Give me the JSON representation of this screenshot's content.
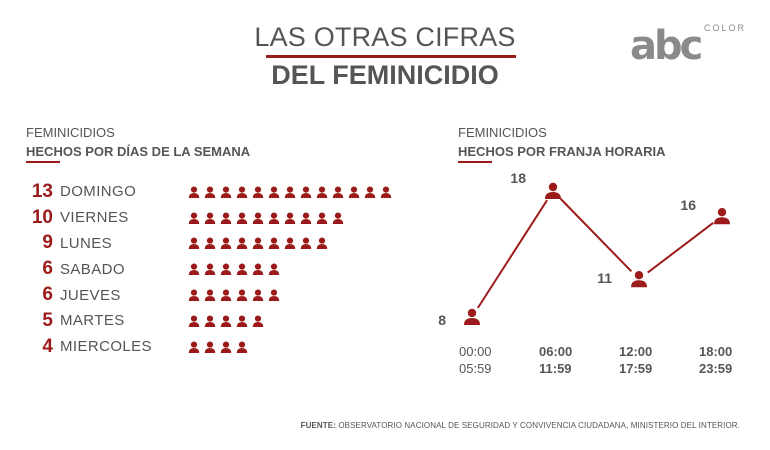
{
  "header": {
    "line1": "LAS OTRAS CIFRAS",
    "line2": "DEL FEMINICIDIO"
  },
  "logo": {
    "main": "abc",
    "sub": "COLOR"
  },
  "accent_color": "#9b1b1b",
  "text_color": "#555555",
  "left_section": {
    "title": "FEMINICIDIOS",
    "subtitle": "HECHOS POR DÍAS DE LA SEMANA"
  },
  "right_section": {
    "title": "FEMINICIDIOS",
    "subtitle": "HECHOS POR FRANJA HORARIA"
  },
  "time_labels": [
    {
      "start": "00:00",
      "end": "05:59"
    },
    {
      "start": "06:00",
      "end": "11:59"
    },
    {
      "start": "12:00",
      "end": "17:59"
    },
    {
      "start": "18:00",
      "end": "23:59"
    }
  ],
  "source": {
    "label": "FUENTE:",
    "text": "OBSERVATORIO NACIONAL DE SEGURIDAD Y CONVIVENCIA CIUDADANA, MINISTERIO DEL INTERIOR."
  },
  "chart_data": [
    {
      "type": "bar",
      "categories": [
        "DOMINGO",
        "VIERNES",
        "LUNES",
        "SABADO",
        "JUEVES",
        "MARTES",
        "MIERCOLES"
      ],
      "values": [
        13,
        10,
        9,
        6,
        6,
        5,
        4
      ],
      "title": "HECHOS POR DÍAS DE LA SEMANA",
      "icon": "person-icon"
    },
    {
      "type": "line",
      "categories": [
        "00:00 - 05:59",
        "06:00 - 11:59",
        "12:00 - 17:59",
        "18:00 - 23:59"
      ],
      "values": [
        8,
        18,
        11,
        16
      ],
      "title": "HECHOS POR FRANJA HORARIA",
      "marker": "person-icon"
    }
  ]
}
